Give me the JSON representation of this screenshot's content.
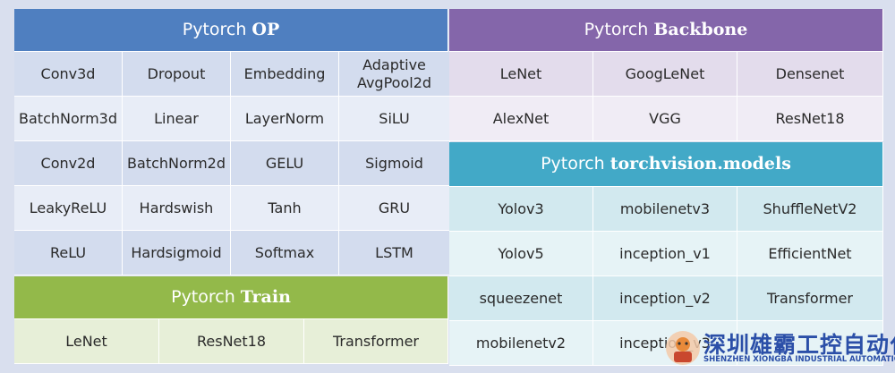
{
  "op": {
    "title_pre": "Pytorch",
    "title_bold": "OP",
    "grid": [
      [
        "Conv3d",
        "Dropout",
        "Embedding",
        "Adaptive\nAvgPool2d"
      ],
      [
        "BatchNorm3d",
        "Linear",
        "LayerNorm",
        "SiLU"
      ],
      [
        "Conv2d",
        "BatchNorm2d",
        "GELU",
        "Sigmoid"
      ],
      [
        "LeakyReLU",
        "Hardswish",
        "Tanh",
        "GRU"
      ],
      [
        "ReLU",
        "Hardsigmoid",
        "Softmax",
        "LSTM"
      ]
    ]
  },
  "backbone": {
    "title_pre": "Pytorch",
    "title_bold": "Backbone",
    "grid": [
      [
        "LeNet",
        "GoogLeNet",
        "Densenet"
      ],
      [
        "AlexNet",
        "VGG",
        "ResNet18"
      ]
    ]
  },
  "torchvision": {
    "title_pre": "Pytorch",
    "title_bold": "torchvision.models",
    "grid": [
      [
        "Yolov3",
        "mobilenetv3",
        "ShuffleNetV2"
      ],
      [
        "Yolov5",
        "inception_v1",
        "EfficientNet"
      ],
      [
        "squeezenet",
        "inception_v2",
        "Transformer"
      ],
      [
        "mobilenetv2",
        "inception_v3",
        ""
      ]
    ]
  },
  "train": {
    "title_pre": "Pytorch",
    "title_bold": "Train",
    "grid": [
      [
        "LeNet",
        "ResNet18",
        "Transformer"
      ]
    ]
  },
  "watermark": {
    "company_cn": "深圳雄霸工控自动化",
    "company_en": "SHENZHEN XIONGBA INDUSTRIAL AUTOMATION"
  }
}
